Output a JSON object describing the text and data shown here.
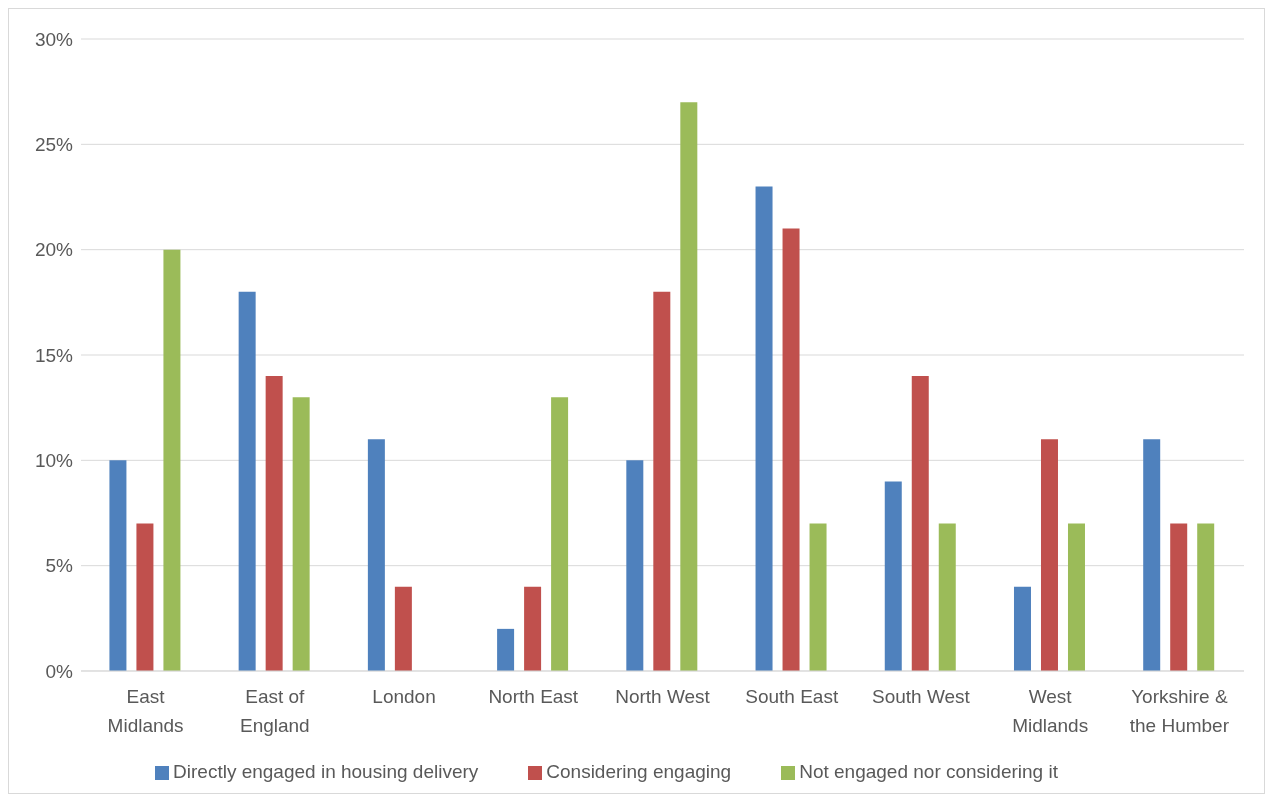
{
  "chart_data": {
    "type": "bar",
    "categories": [
      "East Midlands",
      "East of England",
      "London",
      "North East",
      "North West",
      "South East",
      "South West",
      "West Midlands",
      "Yorkshire & the Humber"
    ],
    "series": [
      {
        "name": "Directly engaged in housing delivery",
        "color": "#4f81bd",
        "values": [
          10,
          18,
          11,
          2,
          10,
          23,
          9,
          4,
          11
        ]
      },
      {
        "name": "Considering engaging",
        "color": "#c0504d",
        "values": [
          7,
          14,
          4,
          4,
          18,
          21,
          14,
          11,
          7
        ]
      },
      {
        "name": "Not engaged nor considering it",
        "color": "#9bbb59",
        "values": [
          20,
          13,
          0,
          13,
          27,
          7,
          7,
          7,
          7
        ]
      }
    ],
    "ylim": [
      0,
      30
    ],
    "yticks": [
      {
        "value": 0,
        "label": "0%"
      },
      {
        "value": 5,
        "label": "5%"
      },
      {
        "value": 10,
        "label": "10%"
      },
      {
        "value": 15,
        "label": "15%"
      },
      {
        "value": 20,
        "label": "20%"
      },
      {
        "value": 25,
        "label": "25%"
      },
      {
        "value": 30,
        "label": "30%"
      }
    ],
    "grid": "y",
    "legend": "bottom"
  }
}
